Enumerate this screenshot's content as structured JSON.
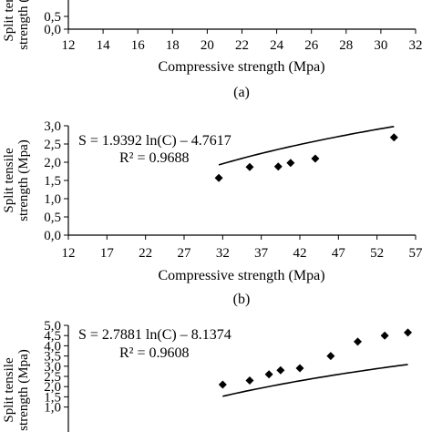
{
  "chart_data": [
    {
      "id": "a",
      "type": "scatter",
      "panel_label": "(a)",
      "xlabel": "Compressive strength (Mpa)",
      "ylabel_lines": [
        "Split tensile",
        "strength (Mpa)"
      ],
      "xlim": [
        12,
        32
      ],
      "xticks": [
        12,
        14,
        16,
        18,
        20,
        22,
        24,
        26,
        28,
        30,
        32
      ],
      "yticks_visible": [
        0.0,
        0.5
      ],
      "ytick_labels": [
        "0,0",
        "0,5"
      ],
      "points": [],
      "equation": "",
      "r2": ""
    },
    {
      "id": "b",
      "type": "scatter",
      "panel_label": "(b)",
      "xlabel": "Compressive strength (Mpa)",
      "ylabel_lines": [
        "Split tensile",
        "strength (Mpa)"
      ],
      "xlim": [
        12,
        57
      ],
      "ylim": [
        0,
        3
      ],
      "xticks": [
        12,
        17,
        22,
        27,
        32,
        37,
        42,
        47,
        52,
        57
      ],
      "yticks": [
        0,
        0.5,
        1,
        1.5,
        2,
        2.5,
        3
      ],
      "ytick_labels": [
        "0,0",
        "0,5",
        "1,0",
        "1,5",
        "2,0",
        "2,5",
        "3,0"
      ],
      "points": [
        [
          31.5,
          1.57
        ],
        [
          35.5,
          1.87
        ],
        [
          39.2,
          1.88
        ],
        [
          40.8,
          1.98
        ],
        [
          44.0,
          2.1
        ],
        [
          54.2,
          2.68
        ]
      ],
      "trendline": {
        "type": "logarithmic",
        "a": 1.9392,
        "b": -4.7617,
        "x_range": [
          31.5,
          54.2
        ]
      },
      "equation": "S = 1.9392 ln(C) – 4.7617",
      "r2": "R² = 0.9688"
    },
    {
      "id": "c",
      "type": "scatter",
      "panel_label": "",
      "xlabel": "",
      "ylabel_lines": [
        "Split tensile",
        "strength (Mpa)"
      ],
      "xlim": [
        12,
        57
      ],
      "ylim": [
        0,
        5
      ],
      "yticks": [
        1.0,
        1.5,
        2.0,
        2.5,
        3.0,
        3.5,
        4.0,
        4.5,
        5.0
      ],
      "ytick_labels": [
        "1,0",
        "1,5",
        "2,0",
        "2,5",
        "3,0",
        "3,5",
        "4,0",
        "4,5",
        "5,0"
      ],
      "points": [
        [
          32.0,
          2.1
        ],
        [
          35.5,
          2.3
        ],
        [
          38.0,
          2.6
        ],
        [
          39.5,
          2.8
        ],
        [
          42.0,
          2.9
        ],
        [
          46.0,
          3.5
        ],
        [
          49.5,
          4.2
        ],
        [
          53.0,
          4.5
        ],
        [
          56.0,
          4.65
        ]
      ],
      "trendline": {
        "type": "logarithmic",
        "a": 2.7881,
        "b": -8.1374,
        "x_range": [
          32.0,
          56.0
        ]
      },
      "equation": "S = 2.7881 ln(C) – 8.1374",
      "r2": "R² = 0.9608"
    }
  ]
}
